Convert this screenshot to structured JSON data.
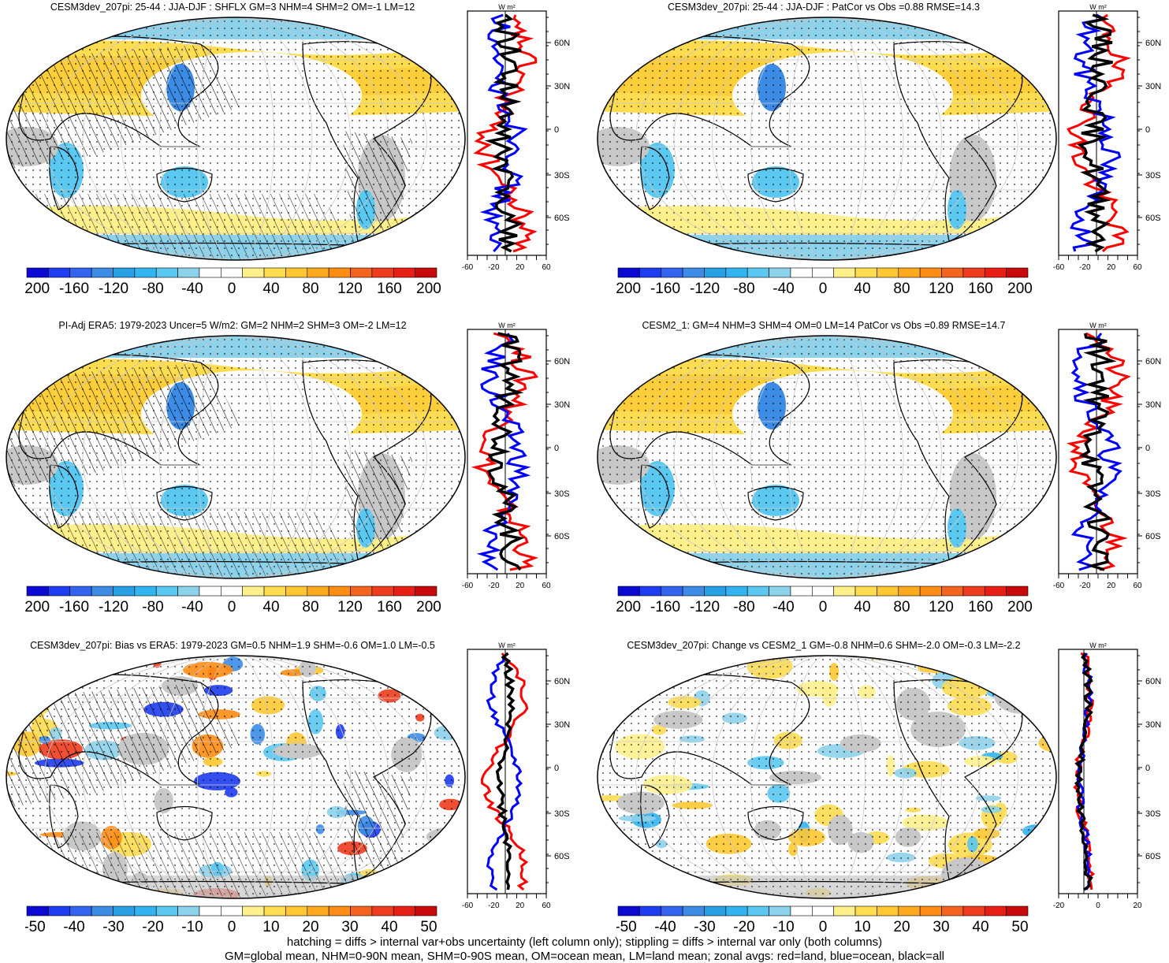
{
  "panels": [
    {
      "title": "CESM3dev_207pi: 25-44 : JJA-DJF : SHFLX GM=3 NHM=4 SHM=2 OM=-1 LM=12",
      "variant": "a"
    },
    {
      "title": "CESM3dev_207pi: 25-44 : JJA-DJF : PatCor vs Obs =0.88 RMSE=14.3",
      "variant": "b"
    },
    {
      "title": "PI-Adj ERA5: 1979-2023 Uncer=5 W/m2: GM=2 NHM=2 SHM=3 OM=-2 LM=12",
      "variant": "a"
    },
    {
      "title": "CESM2_1: GM=4 NHM=3 SHM=4 OM=0 LM=14 PatCor vs Obs =0.89 RMSE=14.7",
      "variant": "b"
    },
    {
      "title": "CESM3dev_207pi: Bias vs ERA5: 1979-2023 GM=0.5 NHM=1.9 SHM=-0.6 OM=1.0 LM=-0.5",
      "variant": "c"
    },
    {
      "title": "CESM3dev_207pi: Change vs CESM2_1 GM=-0.8 NHM=0.6 SHM=-2.0 OM=-0.3 LM=-2.2",
      "variant": "d"
    }
  ],
  "colorbars": {
    "top": {
      "labels": [
        "-200",
        "-160",
        "-120",
        "-80",
        "-40",
        "0",
        "40",
        "80",
        "120",
        "160",
        "200"
      ]
    },
    "bottom": {
      "labels": [
        "-50",
        "-40",
        "-30",
        "-20",
        "-10",
        "0",
        "10",
        "20",
        "30",
        "40",
        "50"
      ]
    },
    "colors": [
      "#0a0ad2",
      "#1e3cf0",
      "#3264f0",
      "#3c8ce6",
      "#28a0e6",
      "#32b4f0",
      "#5ac8f0",
      "#8cd2eb",
      "#ffffff",
      "#ffffff",
      "#fff08c",
      "#ffdc50",
      "#ffc832",
      "#ffaa1e",
      "#ff8c14",
      "#f5641e",
      "#f03c1e",
      "#e61e14",
      "#c80a0a"
    ]
  },
  "zonal_units": "W m²",
  "zonal_lat_labels": [
    "60N",
    "30N",
    "0",
    "30S",
    "60S"
  ],
  "zonal_x_ticks_a": [
    "-60",
    "-20",
    "20",
    "60"
  ],
  "zonal_x_ticks_b": [
    "-20",
    "0",
    "20"
  ],
  "colors": {
    "land": "#ff0000",
    "ocean": "#0000ff",
    "all": "#000000",
    "missing": "#c8c8c8"
  },
  "chart_data": [
    {
      "type": "heatmap",
      "title": "CESM3dev_207pi: 25-44 : JJA-DJF : SHFLX GM=3 NHM=4 SHM=2 OM=-1 LM=12",
      "zlim": [
        -200,
        200
      ]
    },
    {
      "type": "heatmap",
      "title": "CESM3dev_207pi: 25-44 : JJA-DJF : PatCor vs Obs =0.88 RMSE=14.3",
      "zlim": [
        -200,
        200
      ]
    },
    {
      "type": "heatmap",
      "title": "PI-Adj ERA5: 1979-2023 Uncer=5 W/m2: GM=2 NHM=2 SHM=3 OM=-2 LM=12",
      "zlim": [
        -200,
        200
      ]
    },
    {
      "type": "heatmap",
      "title": "CESM2_1: GM=4 NHM=3 SHM=4 OM=0 LM=14 PatCor vs Obs =0.89 RMSE=14.7",
      "zlim": [
        -200,
        200
      ]
    },
    {
      "type": "heatmap",
      "title": "CESM3dev_207pi: Bias vs ERA5: 1979-2023 GM=0.5 NHM=1.9 SHM=-0.6 OM=1.0 LM=-0.5",
      "zlim": [
        -50,
        50
      ]
    },
    {
      "type": "heatmap",
      "title": "CESM3dev_207pi: Change vs CESM2_1 GM=-0.8 NHM=0.6 SHM=-2.0 OM=-0.3 LM=-2.2",
      "zlim": [
        -50,
        50
      ]
    }
  ],
  "footer": {
    "line1": "hatching = diffs > internal var+obs uncertainty (left column only); stippling = diffs > internal var only (both columns)",
    "line2": "GM=global mean, NHM=0-90N mean, SHM=0-90S mean, OM=ocean mean, LM=land mean; zonal avgs: red=land, blue=ocean, black=all"
  }
}
